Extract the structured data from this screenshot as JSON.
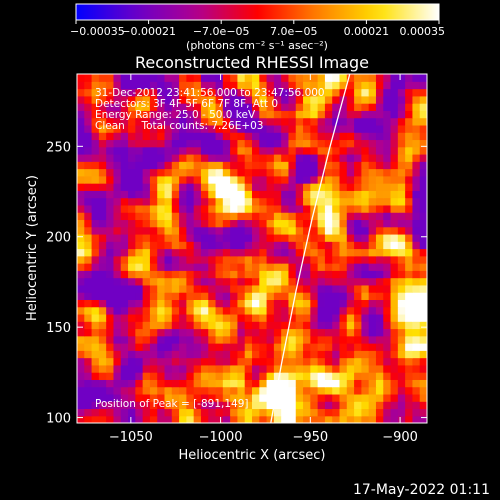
{
  "chart_data": {
    "type": "heatmap",
    "title": "Reconstructed RHESSI Image",
    "xlabel": "Heliocentric X (arcsec)",
    "ylabel": "Heliocentric Y (arcsec)",
    "xlim": [
      -1080,
      -885
    ],
    "ylim": [
      97,
      290
    ],
    "xticks": [
      -1050,
      -1000,
      -950,
      -900
    ],
    "xtick_labels": [
      "−1050",
      "−1000",
      "−950",
      "−900"
    ],
    "yticks": [
      100,
      150,
      200,
      250
    ],
    "ytick_labels": [
      "100",
      "150",
      "200",
      "250"
    ],
    "colorbar": {
      "range": [
        -0.00035,
        0.00035
      ],
      "ticks": [
        -0.00035,
        -0.00021,
        -7e-05,
        7e-05,
        0.00021,
        0.00035
      ],
      "tick_labels": [
        "−0.00035",
        "−0.00021",
        "−7.0e−05",
        "7.0e−05",
        "0.00021",
        "0.00035"
      ],
      "unit_label": "(photons cm⁻² s⁻¹ asec⁻²)",
      "colors": [
        "#0000ff",
        "#6a00c8",
        "#b00090",
        "#ff0000",
        "#ff8000",
        "#ffe000",
        "#ffffff"
      ]
    },
    "info_lines": [
      "31-Dec-2012 23:41:56.000 to 23:47:56.000",
      "Detectors: 3F 4F 5F 6F 7F 8F, Att 0",
      "Energy Range: 25.0 - 50.0 keV",
      "Clean     Total counts: 7.26E+03"
    ],
    "peak_label": "Position of Peak = [-891,149]",
    "peak_position": [
      -891,
      149
    ],
    "limb_color": "#ffffff",
    "limb": [
      [
        -972,
        97
      ],
      [
        -966,
        130
      ],
      [
        -958,
        170
      ],
      [
        -949,
        210
      ],
      [
        -939,
        250
      ],
      [
        -928,
        290
      ]
    ],
    "grid": false,
    "n_x": 48,
    "n_y": 48,
    "seed": 71
  },
  "footer": {
    "timestamp": "17-May-2022 01:11"
  }
}
